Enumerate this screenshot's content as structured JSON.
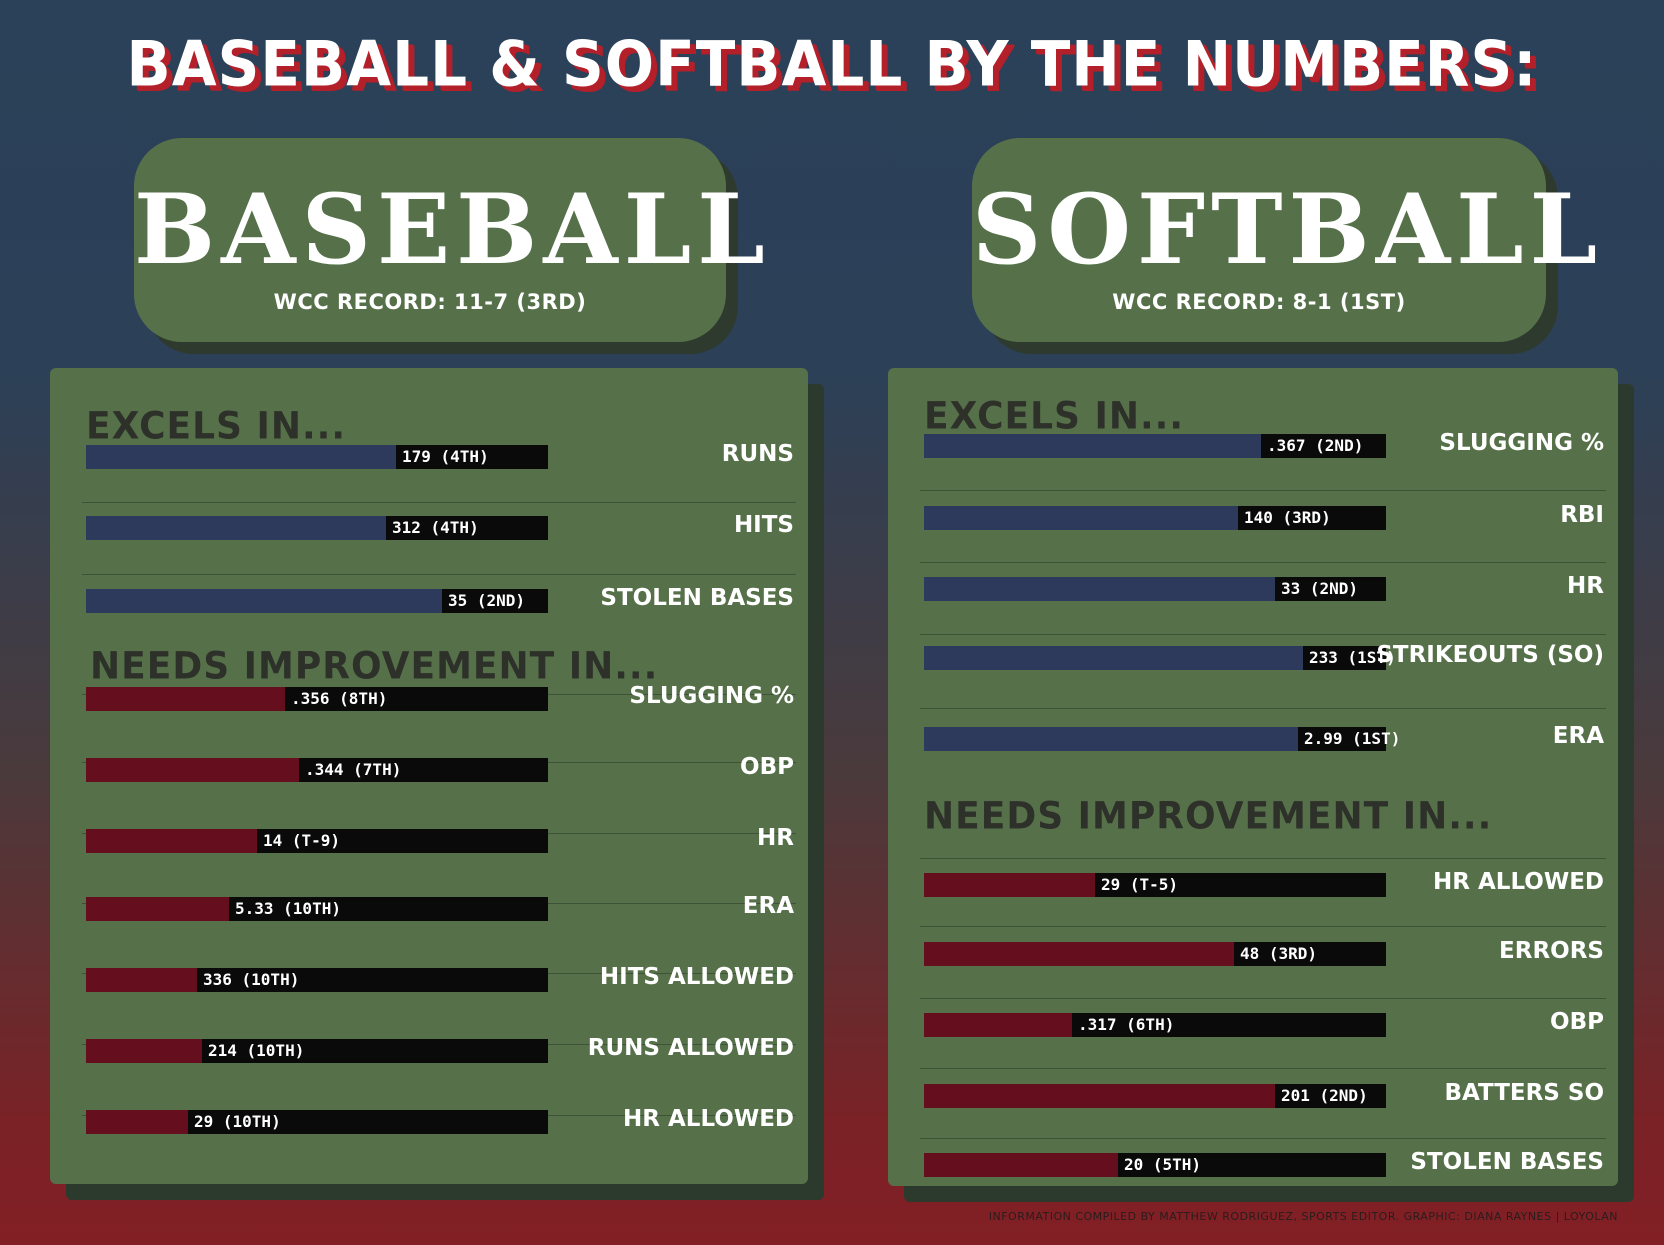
{
  "title": "BASEBALL & SOFTBALL BY THE NUMBERS:",
  "credit": "INFORMATION COMPILED BY MATTHEW RODRIGUEZ, SPORTS EDITOR. GRAPHIC: DIANA RAYNES | LOYOLAN",
  "colors": {
    "excel_bar": "#2e3a5c",
    "improve_bar": "#650e1e",
    "track": "#0a0a0a",
    "panel": "#56714a"
  },
  "chart_data": [
    {
      "type": "bar",
      "sport": "BASEBALL",
      "record": "WCC RECORD: 11-7 (3RD)",
      "sections": [
        {
          "heading": "EXCELS IN...",
          "kind": "excel",
          "items": [
            {
              "label": "RUNS",
              "value_text": "179 (4TH)",
              "fill": 0.67
            },
            {
              "label": "HITS",
              "value_text": "312 (4TH)",
              "fill": 0.65
            },
            {
              "label": "STOLEN BASES",
              "value_text": "35 (2ND)",
              "fill": 0.77
            }
          ]
        },
        {
          "heading": "NEEDS IMPROVEMENT IN...",
          "kind": "improve",
          "items": [
            {
              "label": "SLUGGING %",
              "value_text": ".356 (8TH)",
              "fill": 0.43
            },
            {
              "label": "OBP",
              "value_text": ".344 (7TH)",
              "fill": 0.46
            },
            {
              "label": "HR",
              "value_text": "14 (T-9)",
              "fill": 0.37
            },
            {
              "label": "ERA",
              "value_text": "5.33 (10TH)",
              "fill": 0.31
            },
            {
              "label": "HITS ALLOWED",
              "value_text": "336 (10TH)",
              "fill": 0.24
            },
            {
              "label": "RUNS ALLOWED",
              "value_text": "214 (10TH)",
              "fill": 0.25
            },
            {
              "label": "HR ALLOWED",
              "value_text": "29 (10TH)",
              "fill": 0.22
            }
          ]
        }
      ]
    },
    {
      "type": "bar",
      "sport": "SOFTBALL",
      "record": "WCC RECORD: 8-1 (1ST)",
      "sections": [
        {
          "heading": "EXCELS IN...",
          "kind": "excel",
          "items": [
            {
              "label": "SLUGGING %",
              "value_text": ".367 (2ND)",
              "fill": 0.73
            },
            {
              "label": "RBI",
              "value_text": "140 (3RD)",
              "fill": 0.68
            },
            {
              "label": "HR",
              "value_text": "33 (2ND)",
              "fill": 0.76
            },
            {
              "label": "STRIKEOUTS (SO)",
              "value_text": "233 (1ST)",
              "fill": 0.82
            },
            {
              "label": "ERA",
              "value_text": "2.99 (1ST)",
              "fill": 0.81
            }
          ]
        },
        {
          "heading": "NEEDS IMPROVEMENT IN...",
          "kind": "improve",
          "items": [
            {
              "label": "HR ALLOWED",
              "value_text": "29 (T-5)",
              "fill": 0.37
            },
            {
              "label": "ERRORS",
              "value_text": "48 (3RD)",
              "fill": 0.67
            },
            {
              "label": "OBP",
              "value_text": ".317 (6TH)",
              "fill": 0.32
            },
            {
              "label": "BATTERS SO",
              "value_text": "201 (2ND)",
              "fill": 0.76
            },
            {
              "label": "STOLEN BASES",
              "value_text": "20 (5TH)",
              "fill": 0.42
            }
          ]
        }
      ]
    }
  ]
}
